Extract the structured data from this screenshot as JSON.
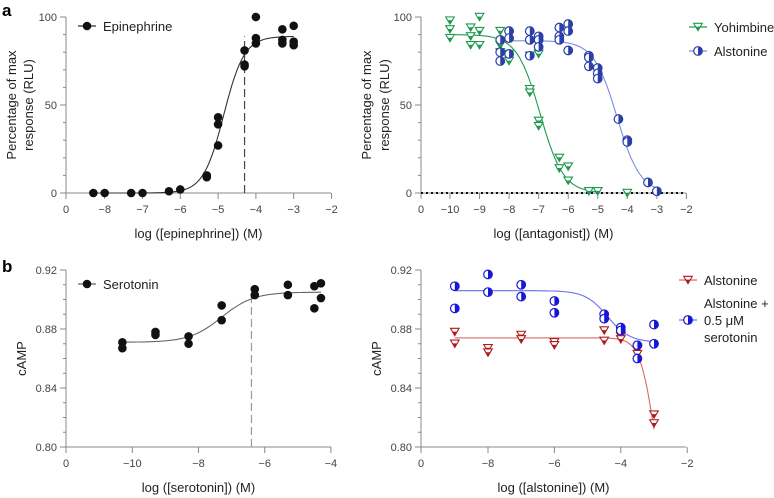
{
  "panel_labels": [
    "a",
    "b"
  ],
  "colors": {
    "black": "#111111",
    "green": "#1f9a50",
    "blue_a": "#2b3fa8",
    "blue_a_curve": "#7a8ee0",
    "blue_b": "#1717d6",
    "blue_b_curve": "#6a6ff0",
    "red": "#b01c1c",
    "red_curve": "#d66a6a"
  },
  "chart_data": [
    {
      "type": "scatter",
      "title": "",
      "xlabel": "log ([epinephrine]) (M)",
      "ylabel": [
        "Percentage of max",
        "response (RLU)"
      ],
      "xlim": [
        -8.8,
        -2
      ],
      "ylim": [
        0,
        100
      ],
      "x_ticks": [
        "0",
        "−8",
        "−7",
        "−6",
        "−5",
        "−4",
        "−3",
        "−2"
      ],
      "x_tick_values": [
        0,
        -8,
        -7,
        -6,
        -5,
        -4,
        -3,
        -2
      ],
      "y_ticks": [
        "0",
        "50",
        "100"
      ],
      "y_tick_values": [
        0,
        50,
        100
      ],
      "y_minor_step": 10,
      "axis_break": true,
      "legend_position": "top-left",
      "reference_line_x": -4.3,
      "series": [
        {
          "name": "Epinephrine",
          "color": "#111111",
          "marker": "filled-circle",
          "points": [
            [
              -8.3,
              0
            ],
            [
              -8,
              0
            ],
            [
              -7.3,
              0
            ],
            [
              -7,
              0
            ],
            [
              -6.3,
              1
            ],
            [
              -6,
              2
            ],
            [
              -5.3,
              10
            ],
            [
              -5.3,
              9
            ],
            [
              -5,
              43
            ],
            [
              -5,
              39
            ],
            [
              -5,
              27
            ],
            [
              -4.3,
              81
            ],
            [
              -4.3,
              73
            ],
            [
              -4.3,
              72
            ],
            [
              -4,
              100
            ],
            [
              -4,
              88
            ],
            [
              -4,
              85
            ],
            [
              -3.3,
              93
            ],
            [
              -3.3,
              87
            ],
            [
              -3.3,
              85
            ],
            [
              -3,
              95
            ],
            [
              -3,
              86
            ],
            [
              -3,
              84
            ]
          ],
          "fit": {
            "bottom": 0,
            "top": 89,
            "logEC50": -4.85,
            "hill": 1.6,
            "range": [
              -8.3,
              -3
            ]
          }
        }
      ]
    },
    {
      "type": "scatter",
      "title": "",
      "xlabel": "log ([antagonist]) (M)",
      "ylabel": [
        "Percentage of max",
        "response (RLU)"
      ],
      "xlim": [
        -11,
        -2
      ],
      "ylim": [
        0,
        100
      ],
      "x_ticks": [
        "0",
        "−10",
        "−9",
        "−8",
        "−7",
        "−6",
        "−5",
        "−4",
        "−3",
        "−2"
      ],
      "x_tick_values": [
        0,
        -10,
        -9,
        -8,
        -7,
        -6,
        -5,
        -4,
        -3,
        -2
      ],
      "y_ticks": [
        "0",
        "50",
        "100"
      ],
      "y_tick_values": [
        0,
        50,
        100
      ],
      "y_minor_step": 10,
      "axis_break": true,
      "legend_position": "top-right-outside",
      "baseline_dotted_y": 0,
      "series": [
        {
          "name": "Yohimbine",
          "color": "#1f9a50",
          "marker": "half-triangle-down",
          "points": [
            [
              -10,
              98
            ],
            [
              -10,
              93
            ],
            [
              -10,
              88
            ],
            [
              -9.3,
              94
            ],
            [
              -9.3,
              89
            ],
            [
              -9.3,
              84
            ],
            [
              -9,
              100
            ],
            [
              -9,
              92
            ],
            [
              -9,
              84
            ],
            [
              -8.3,
              92
            ],
            [
              -8.3,
              84
            ],
            [
              -8.3,
              80
            ],
            [
              -8,
              90
            ],
            [
              -8,
              79
            ],
            [
              -8,
              75
            ],
            [
              -7.3,
              59
            ],
            [
              -7.3,
              57
            ],
            [
              -7.3,
              78
            ],
            [
              -7,
              41
            ],
            [
              -7,
              38
            ],
            [
              -7,
              79
            ],
            [
              -6.3,
              20
            ],
            [
              -6.3,
              14
            ],
            [
              -6,
              15
            ],
            [
              -6,
              7
            ],
            [
              -5.3,
              1
            ],
            [
              -5,
              1
            ],
            [
              -4,
              0
            ]
          ],
          "fit": {
            "bottom": 0,
            "top": 90,
            "logEC50": -6.95,
            "hill": -1.1,
            "range": [
              -10,
              -5
            ]
          }
        },
        {
          "name": "Alstonine",
          "color": "#2b3fa8",
          "marker": "half-circle",
          "points": [
            [
              -8.3,
              87
            ],
            [
              -8.3,
              80
            ],
            [
              -8.3,
              75
            ],
            [
              -8,
              92
            ],
            [
              -8,
              88
            ],
            [
              -8,
              79
            ],
            [
              -7.3,
              92
            ],
            [
              -7.3,
              87
            ],
            [
              -7.3,
              78
            ],
            [
              -7,
              89
            ],
            [
              -7,
              87
            ],
            [
              -7,
              83
            ],
            [
              -6.3,
              94
            ],
            [
              -6.3,
              89
            ],
            [
              -6.3,
              87
            ],
            [
              -6,
              96
            ],
            [
              -6,
              92
            ],
            [
              -6,
              81
            ],
            [
              -5.3,
              78
            ],
            [
              -5.3,
              77
            ],
            [
              -5.3,
              72
            ],
            [
              -5,
              71
            ],
            [
              -5,
              68
            ],
            [
              -5,
              65
            ],
            [
              -4.3,
              42
            ],
            [
              -4,
              30
            ],
            [
              -4,
              29
            ],
            [
              -3.3,
              6
            ],
            [
              -3,
              1
            ]
          ],
          "fit": {
            "bottom": 0,
            "top": 86.5,
            "logEC50": -4.35,
            "hill": -1.1,
            "range": [
              -8.3,
              -3
            ]
          }
        }
      ]
    },
    {
      "type": "scatter",
      "title": "",
      "xlabel": "log ([serotonin]) (M)",
      "ylabel": [
        "cAMP"
      ],
      "xlim": [
        -12,
        -4
      ],
      "ylim": [
        0.8,
        0.92
      ],
      "x_ticks": [
        "0",
        "−10",
        "−8",
        "−6",
        "−4"
      ],
      "x_tick_values": [
        0,
        -10,
        -8,
        -6,
        -4
      ],
      "y_ticks": [
        "0.80",
        "0.84",
        "0.88",
        "0.92"
      ],
      "y_tick_values": [
        0.8,
        0.84,
        0.88,
        0.92
      ],
      "y_minor_step": 0.01,
      "axis_break": true,
      "legend_position": "top-left",
      "reference_line_x": -6.4,
      "series": [
        {
          "name": "Serotonin",
          "color": "#111111",
          "marker": "filled-circle",
          "points": [
            [
              -10.3,
              0.871
            ],
            [
              -10.3,
              0.867
            ],
            [
              -9.3,
              0.878
            ],
            [
              -9.3,
              0.876
            ],
            [
              -8.3,
              0.875
            ],
            [
              -8.3,
              0.87
            ],
            [
              -7.3,
              0.896
            ],
            [
              -7.3,
              0.886
            ],
            [
              -6.3,
              0.907
            ],
            [
              -6.3,
              0.903
            ],
            [
              -5.3,
              0.91
            ],
            [
              -5.3,
              0.903
            ],
            [
              -4.5,
              0.909
            ],
            [
              -4.5,
              0.894
            ],
            [
              -4.3,
              0.911
            ],
            [
              -4.3,
              0.901
            ]
          ],
          "fit": {
            "bottom": 0.871,
            "top": 0.905,
            "logEC50": -7.3,
            "hill": 0.9,
            "range": [
              -10.3,
              -4.3
            ]
          }
        }
      ]
    },
    {
      "type": "scatter",
      "title": "",
      "xlabel": "log ([alstonine]) (M)",
      "ylabel": [
        "cAMP"
      ],
      "xlim": [
        -10,
        -2
      ],
      "ylim": [
        0.8,
        0.92
      ],
      "x_ticks": [
        "0",
        "−8",
        "−6",
        "−4",
        "−2"
      ],
      "x_tick_values": [
        0,
        -8,
        -6,
        -4,
        -2
      ],
      "y_ticks": [
        "0.80",
        "0.84",
        "0.88",
        "0.92"
      ],
      "y_tick_values": [
        0.8,
        0.84,
        0.88,
        0.92
      ],
      "y_minor_step": 0.01,
      "axis_break": true,
      "legend_position": "top-right-outside",
      "series": [
        {
          "name": "Alstonine",
          "legend_lines": [
            "Alstonine"
          ],
          "color": "#b01c1c",
          "marker": "half-triangle-down",
          "points": [
            [
              -9,
              0.878
            ],
            [
              -9,
              0.87
            ],
            [
              -8,
              0.867
            ],
            [
              -8,
              0.864
            ],
            [
              -7,
              0.876
            ],
            [
              -7,
              0.873
            ],
            [
              -6,
              0.871
            ],
            [
              -6,
              0.869
            ],
            [
              -4.5,
              0.879
            ],
            [
              -4.5,
              0.872
            ],
            [
              -4,
              0.875
            ],
            [
              -4,
              0.873
            ],
            [
              -3.5,
              0.866
            ],
            [
              -3.5,
              0.863
            ],
            [
              -3,
              0.822
            ],
            [
              -3,
              0.816
            ]
          ],
          "fit": {
            "bottom": 0.75,
            "top": 0.874,
            "logEC50": -3.0,
            "hill": -2,
            "range": [
              -9,
              -3
            ]
          }
        },
        {
          "name": "Alstonine + 0.5 μM serotonin",
          "legend_lines": [
            "Alstonine +",
            "0.5 μM",
            "serotonin"
          ],
          "color": "#1717d6",
          "marker": "half-circle",
          "points": [
            [
              -9,
              0.909
            ],
            [
              -9,
              0.894
            ],
            [
              -8,
              0.917
            ],
            [
              -8,
              0.905
            ],
            [
              -7,
              0.91
            ],
            [
              -7,
              0.902
            ],
            [
              -6,
              0.899
            ],
            [
              -6,
              0.891
            ],
            [
              -4.5,
              0.89
            ],
            [
              -4.5,
              0.887
            ],
            [
              -4,
              0.881
            ],
            [
              -4,
              0.879
            ],
            [
              -3.5,
              0.869
            ],
            [
              -3.5,
              0.86
            ],
            [
              -3,
              0.883
            ],
            [
              -3,
              0.87
            ]
          ],
          "fit": {
            "bottom": 0.871,
            "top": 0.906,
            "logEC50": -4.4,
            "hill": -1.3,
            "range": [
              -9,
              -3
            ]
          }
        }
      ]
    }
  ]
}
